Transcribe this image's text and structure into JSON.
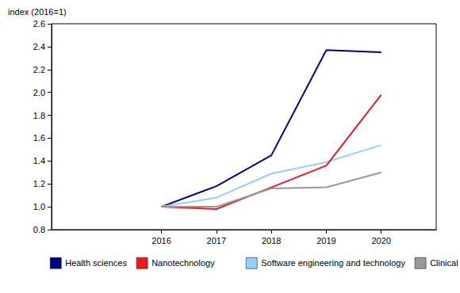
{
  "chart_data": {
    "type": "line",
    "y_label": "index (2016=1)",
    "x": [
      2016,
      2017,
      2018,
      2019,
      2020
    ],
    "xlim": [
      2014,
      2021
    ],
    "xticks": [
      2016,
      2017,
      2018,
      2019,
      2020
    ],
    "ylim": [
      0.8,
      2.6
    ],
    "yticks": [
      0.8,
      {
        "value": 1,
        "label": "1.0"
      },
      1.2,
      1.4,
      1.6,
      1.8,
      {
        "value": 2,
        "label": "2.0"
      },
      2.2,
      2.4,
      2.6
    ],
    "grid": false,
    "legend": "bottom",
    "series": [
      {
        "name": "Health sciences",
        "color": "#000080",
        "values": [
          1.0,
          1.18,
          1.45,
          2.37,
          2.35
        ]
      },
      {
        "name": "Software engineering and technology",
        "color": "#99ccff",
        "values": [
          1.0,
          1.08,
          1.29,
          1.39,
          1.54
        ]
      },
      {
        "name": "Nanotechnology",
        "color": "#e8191f",
        "values": [
          1.0,
          0.98,
          1.17,
          1.36,
          1.98
        ]
      },
      {
        "name": "Clinical medicine",
        "color": "#999999",
        "values": [
          1.0,
          1.0,
          1.16,
          1.17,
          1.3
        ]
      }
    ]
  }
}
